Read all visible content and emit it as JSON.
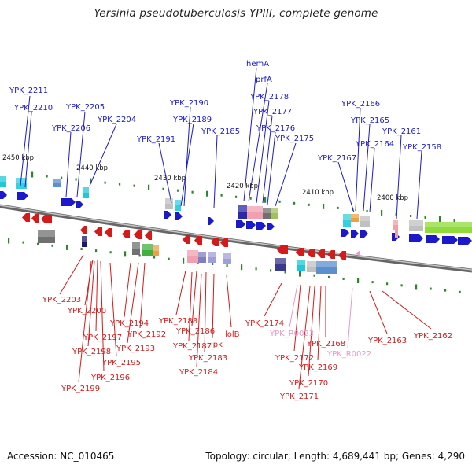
{
  "header": {
    "title": "Yersinia pseudotuberculosis YPIII, complete genome"
  },
  "footer": {
    "accession": "Accession: NC_010465",
    "summary": "Topology: circular; Length: 4,689,441 bp; Genes: 4,290"
  },
  "map": {
    "kbp_labels": [
      "2450 kbp",
      "2440 kbp",
      "2430 kbp",
      "2420 kbp",
      "2410 kbp",
      "2400 kbp"
    ],
    "forward_genes": [
      "YPK_2211",
      "YPK_2210",
      "YPK_2205",
      "YPK_2206",
      "YPK_2204",
      "YPK_2190",
      "YPK_2189",
      "YPK_2191",
      "YPK_2185",
      "hemA",
      "prfA",
      "YPK_2178",
      "YPK_2177",
      "YPK_2176",
      "YPK_2175",
      "YPK_2166",
      "YPK_2165",
      "YPK_2164",
      "YPK_2161",
      "YPK_2167",
      "YPK_2158"
    ],
    "reverse_genes": [
      "YPK_2203",
      "YPK_2200",
      "YPK_2197",
      "YPK_2198",
      "YPK_2199",
      "YPK_2196",
      "YPK_2195",
      "YPK_2194",
      "YPK_2193",
      "YPK_2192",
      "YPK_2188",
      "YPK_2186",
      "YPK_2187",
      "YPK_2183",
      "YPK_2184",
      "ipk",
      "lolB",
      "YPK_2174",
      "YPK_2172",
      "YPK_2171",
      "YPK_2170",
      "YPK_2169",
      "YPK_2168",
      "YPK_2163",
      "YPK_2162"
    ],
    "rna_genes": [
      "YPK_R0023",
      "YPK_R0022"
    ]
  },
  "colors": {
    "forward": "#1a1acc",
    "reverse": "#d61a1a",
    "rna": "#e89ac8",
    "backbone": "#888888",
    "tick": "#2a8a2a"
  }
}
